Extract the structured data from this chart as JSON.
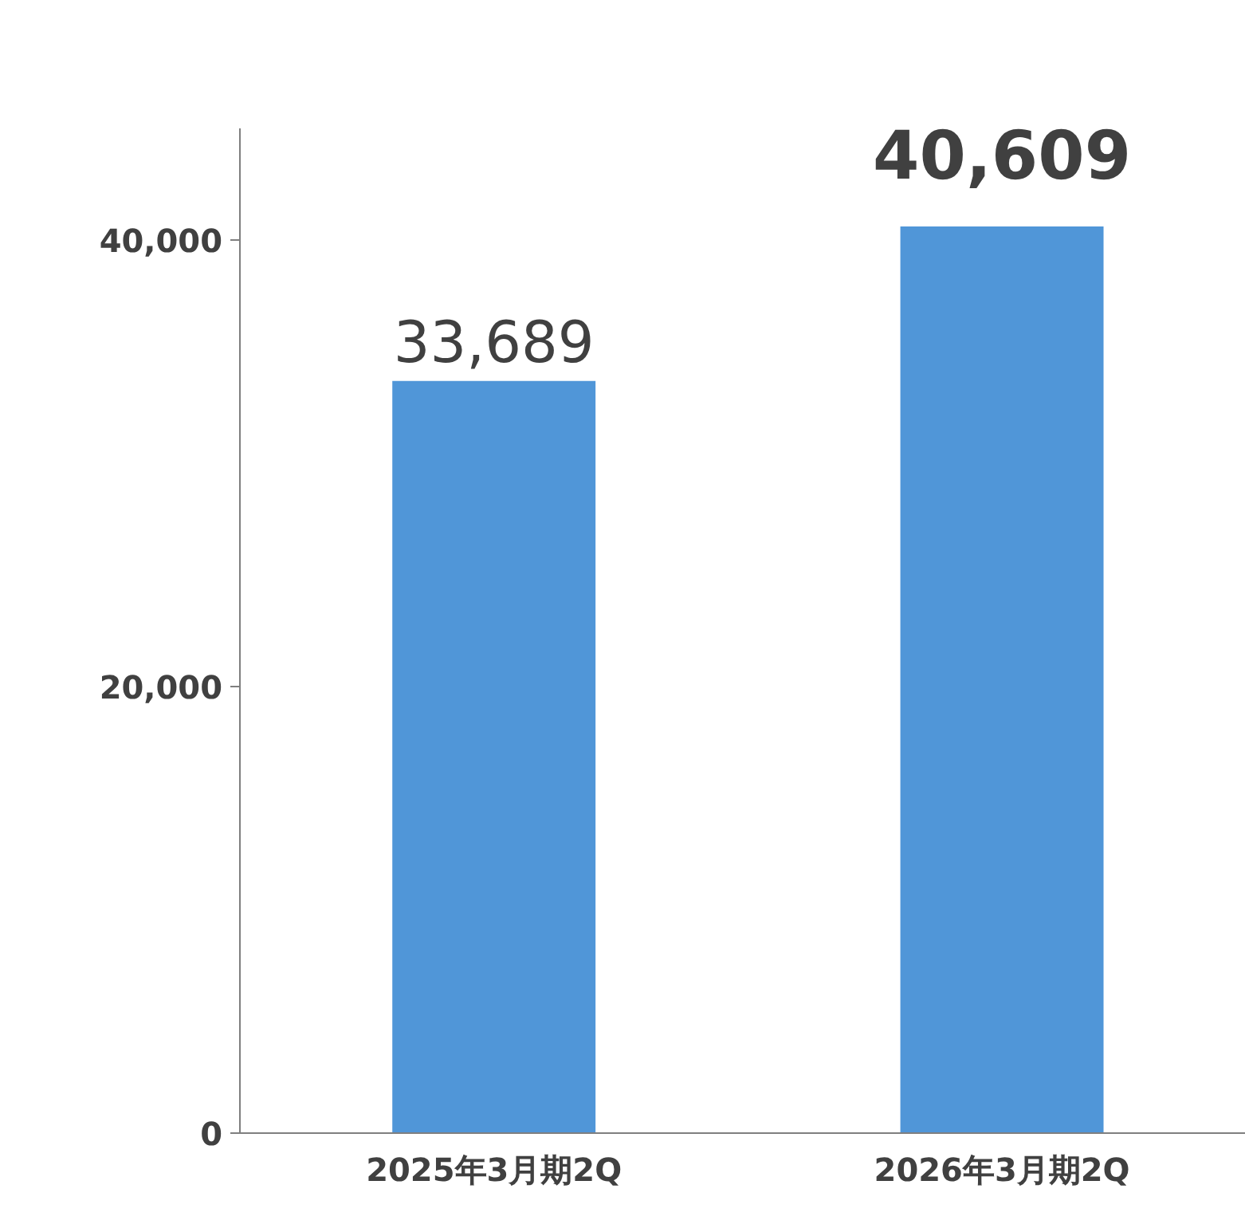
{
  "chart_data": {
    "type": "bar",
    "categories": [
      "2025年3月期2Q",
      "2026年3月期2Q"
    ],
    "values": [
      33689,
      40609
    ],
    "color": "#5096d8",
    "ylim": [
      0,
      45000
    ],
    "yticks": [
      0,
      {
        "value": 20000,
        "label": "20,000"
      },
      {
        "value": 40000,
        "label": "40,000"
      }
    ],
    "data_labels": true,
    "value_labels": [
      "33,689",
      "40,609"
    ],
    "grid": false
  }
}
